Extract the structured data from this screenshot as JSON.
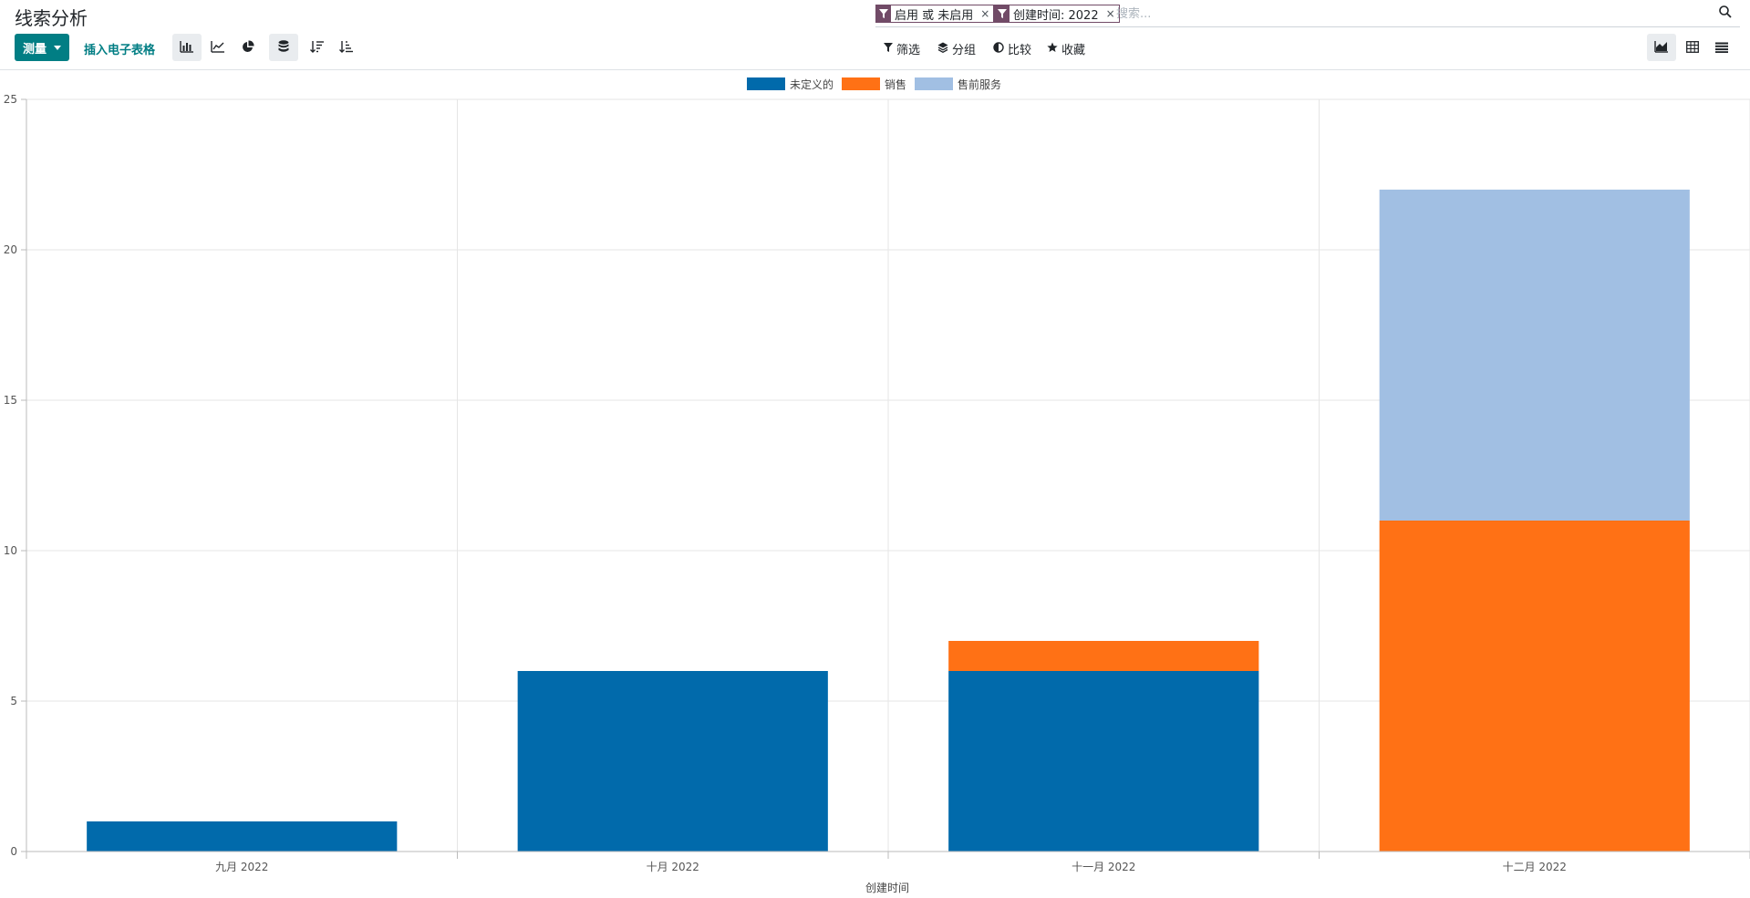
{
  "header": {
    "title": "线索分析"
  },
  "search": {
    "facets": [
      {
        "label": "启用 或 未启用"
      },
      {
        "label": "创建时间: 2022"
      }
    ],
    "facet_close": "×",
    "placeholder": "搜索..."
  },
  "toolbar": {
    "measure_label": "测量",
    "insert_label": "插入电子表格",
    "filter_label": "筛选",
    "group_label": "分组",
    "compare_label": "比较",
    "favorites_label": "收藏"
  },
  "colors": {
    "primary": "#017e84",
    "facet": "#714b67"
  },
  "chart_data": {
    "type": "bar",
    "stacked": true,
    "categories": [
      "九月 2022",
      "十月 2022",
      "十一月 2022",
      "十二月 2022"
    ],
    "series": [
      {
        "name": "未定义的",
        "color": "#016aab",
        "values": [
          1,
          6,
          6,
          0
        ]
      },
      {
        "name": "销售",
        "color": "#ff7115",
        "values": [
          0,
          0,
          1,
          11
        ]
      },
      {
        "name": "售前服务",
        "color": "#a1bfe3",
        "values": [
          0,
          0,
          0,
          11
        ]
      }
    ],
    "xlabel": "创建时间",
    "ylabel": "",
    "ylim": [
      0,
      25
    ],
    "yticks": [
      0,
      5,
      10,
      15,
      20,
      25
    ],
    "grid": true,
    "legend": "top-center"
  }
}
